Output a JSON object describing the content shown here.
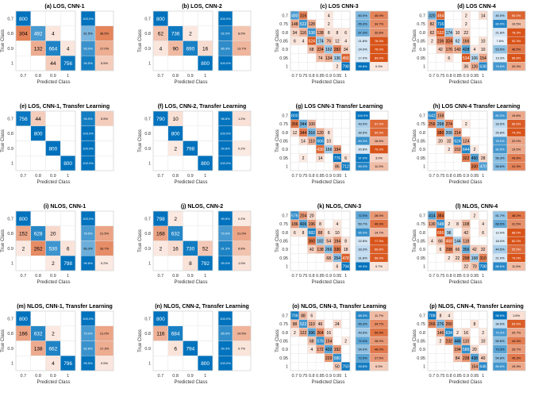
{
  "chart_data": [
    {
      "type": "heatmap",
      "title": "(a) LOS, CNN-1",
      "classes": [
        "0.7",
        "0.8",
        "0.9",
        "1"
      ],
      "matrix": [
        [
          800,
          0,
          0,
          0
        ],
        [
          304,
          492,
          4,
          0
        ],
        [
          0,
          132,
          664,
          4
        ],
        [
          0,
          0,
          44,
          756
        ]
      ],
      "row_summary": [
        [
          "100.0%",
          ""
        ],
        [
          "61.5%",
          "38.5%"
        ],
        [
          "83.0%",
          "17.0%"
        ],
        [
          "94.5%",
          "5.5%"
        ]
      ],
      "xlabel": "Predicted Class",
      "ylabel": "True Class"
    },
    {
      "type": "heatmap",
      "title": "(b) LOS, CNN-2",
      "classes": [
        "0.7",
        "0.8",
        "0.9",
        "1"
      ],
      "matrix": [
        [
          800,
          0,
          0,
          0
        ],
        [
          62,
          736,
          2,
          0
        ],
        [
          4,
          90,
          690,
          16
        ],
        [
          0,
          0,
          0,
          800
        ]
      ],
      "row_summary": [
        [
          "100.0%",
          ""
        ],
        [
          "92.0%",
          "8.0%"
        ],
        [
          "86.3%",
          "13.7%"
        ],
        [
          "100.0%",
          ""
        ]
      ],
      "xlabel": "Predicted Class",
      "ylabel": "True Class"
    },
    {
      "type": "heatmap",
      "title": "(c) LOS CNN-3",
      "classes": [
        "0.7",
        "0.75",
        "0.8",
        "0.85",
        "0.9",
        "0.95",
        "1"
      ],
      "matrix": [
        [
          480,
          316,
          0,
          0,
          4,
          0,
          0
        ],
        [
          148,
          522,
          128,
          0,
          2,
          0,
          0
        ],
        [
          34,
          116,
          538,
          138,
          8,
          8,
          6
        ],
        [
          6,
          4,
          524,
          174,
          76,
          12,
          4
        ],
        [
          0,
          0,
          68,
          224,
          192,
          282,
          34
        ],
        [
          0,
          0,
          0,
          74,
          134,
          136,
          456
        ],
        [
          0,
          0,
          0,
          0,
          0,
          2,
          798
        ]
      ],
      "row_summary": [
        [
          "60.0%",
          "40.0%"
        ],
        [
          "65.3%",
          "34.7%"
        ],
        [
          "67.3%",
          "32.8%"
        ],
        [
          "21.8%",
          "78.3%"
        ],
        [
          "24.0%",
          "76.0%"
        ],
        [
          "17.0%",
          "83.0%"
        ],
        [
          "99.8%",
          "0.3%"
        ]
      ],
      "xlabel": "Predicted Class",
      "ylabel": "True Class"
    },
    {
      "type": "heatmap",
      "title": "(d) LOS CNN-4",
      "classes": [
        "0.7",
        "0.75",
        "0.8",
        "0.85",
        "0.9",
        "0.95",
        "1"
      ],
      "matrix": [
        [
          320,
          464,
          0,
          0,
          2,
          0,
          14
        ],
        [
          82,
          716,
          0,
          0,
          2,
          0,
          0
        ],
        [
          62,
          532,
          174,
          10,
          22,
          0,
          0
        ],
        [
          2,
          236,
          324,
          62,
          166,
          0,
          10
        ],
        [
          0,
          42,
          176,
          140,
          428,
          4,
          10
        ],
        [
          0,
          0,
          6,
          0,
          534,
          106,
          154
        ],
        [
          0,
          0,
          0,
          0,
          36,
          126,
          638
        ]
      ],
      "row_summary": [
        [
          "40.0%",
          "60.0%"
        ],
        [
          "89.5%",
          "10.5%"
        ],
        [
          "21.8%",
          "78.3%"
        ],
        [
          "7.8%",
          "92.3%"
        ],
        [
          "53.5%",
          "46.5%"
        ],
        [
          "13.3%",
          "86.8%"
        ],
        [
          "79.8%",
          "20.3%"
        ]
      ],
      "xlabel": "Predicted Class",
      "ylabel": "True Class"
    },
    {
      "type": "heatmap",
      "title": "(e) LOS, CNN-1, Transfer Learning",
      "classes": [
        "0.7",
        "0.8",
        "0.9",
        "1"
      ],
      "matrix": [
        [
          756,
          44,
          0,
          0
        ],
        [
          0,
          800,
          0,
          0
        ],
        [
          0,
          0,
          800,
          0
        ],
        [
          0,
          0,
          0,
          800
        ]
      ],
      "row_summary": [
        [
          "94.5%",
          "5.5%"
        ],
        [
          "100.0%",
          ""
        ],
        [
          "100.0%",
          ""
        ],
        [
          "100.0%",
          ""
        ]
      ],
      "xlabel": "Predicted Class",
      "ylabel": "True Class"
    },
    {
      "type": "heatmap",
      "title": "(f) LOS, CNN-2, Transfer Learning",
      "classes": [
        "0.7",
        "0.8",
        "0.9",
        "1"
      ],
      "matrix": [
        [
          790,
          10,
          0,
          0
        ],
        [
          0,
          800,
          0,
          0
        ],
        [
          0,
          2,
          798,
          0
        ],
        [
          0,
          0,
          0,
          800
        ]
      ],
      "row_summary": [
        [
          "98.8%",
          "1.2%"
        ],
        [
          "100.0%",
          ""
        ],
        [
          "99.8%",
          "0.2%"
        ],
        [
          "100.0%",
          ""
        ]
      ],
      "xlabel": "Predicted Class",
      "ylabel": "True Class"
    },
    {
      "type": "heatmap",
      "title": "(g) LOS CNN-3 Transfer Learning",
      "classes": [
        "0.7",
        "0.75",
        "0.8",
        "0.85",
        "0.9",
        "0.95",
        "1"
      ],
      "matrix": [
        [
          800,
          0,
          0,
          0,
          0,
          0,
          0
        ],
        [
          356,
          344,
          100,
          0,
          0,
          0,
          0
        ],
        [
          12,
          344,
          316,
          120,
          8,
          0,
          0
        ],
        [
          0,
          14,
          110,
          666,
          10,
          0,
          0
        ],
        [
          0,
          0,
          0,
          430,
          166,
          194,
          0
        ],
        [
          0,
          2,
          0,
          14,
          0,
          776,
          6
        ],
        [
          0,
          0,
          0,
          0,
          0,
          86,
          712
        ]
      ],
      "row_summary": [
        [
          "100.0%",
          ""
        ],
        [
          "43.0%",
          "57.0%"
        ],
        [
          "39.5%",
          "60.5%"
        ],
        [
          "83.3%",
          "16.8%"
        ],
        [
          "20.8%",
          "79.3%"
        ],
        [
          "97.0%",
          "3.0%"
        ],
        [
          "89.0%",
          "11.0%"
        ]
      ],
      "xlabel": "Predicted Class",
      "ylabel": "True Class"
    },
    {
      "type": "heatmap",
      "title": "(h) LOS CNN-4 Transfer Learning",
      "classes": [
        "0.7",
        "0.75",
        "0.8",
        "0.85",
        "0.9",
        "0.95",
        "1"
      ],
      "matrix": [
        [
          642,
          158,
          0,
          0,
          0,
          0,
          0
        ],
        [
          256,
          268,
          274,
          0,
          2,
          0,
          0
        ],
        [
          0,
          380,
          206,
          214,
          0,
          0,
          0
        ],
        [
          0,
          20,
          32,
          624,
          124,
          0,
          0
        ],
        [
          0,
          0,
          2,
          152,
          644,
          2,
          0
        ],
        [
          0,
          0,
          0,
          0,
          322,
          450,
          28
        ],
        [
          0,
          0,
          0,
          0,
          0,
          330,
          470
        ]
      ],
      "row_summary": [
        [
          "80.3%",
          "19.8%"
        ],
        [
          "33.5%",
          "66.5%"
        ],
        [
          "25.8%",
          "74.3%"
        ],
        [
          "78.0%",
          "22.0%"
        ],
        [
          "80.5%",
          "19.5%"
        ],
        [
          "56.3%",
          "43.8%"
        ],
        [
          "58.8%",
          "41.3%"
        ]
      ],
      "xlabel": "Predicted Class",
      "ylabel": "True Class"
    },
    {
      "type": "heatmap",
      "title": "(i) NLOS, CNN-1",
      "classes": [
        "0.7",
        "0.8",
        "0.9",
        "1"
      ],
      "matrix": [
        [
          800,
          0,
          0,
          0
        ],
        [
          152,
          628,
          20,
          0
        ],
        [
          2,
          262,
          530,
          6
        ],
        [
          0,
          0,
          2,
          798
        ]
      ],
      "row_summary": [
        [
          "100.0%",
          ""
        ],
        [
          "78.5%",
          "21.5%"
        ],
        [
          "66.3%",
          "33.7%"
        ],
        [
          "99.8%",
          "0.2%"
        ]
      ],
      "xlabel": "Predicted Class",
      "ylabel": "True Class"
    },
    {
      "type": "heatmap",
      "title": "(j) NLOS, CNN-2",
      "classes": [
        "0.7",
        "0.8",
        "0.9",
        "1"
      ],
      "matrix": [
        [
          798,
          2,
          0,
          0
        ],
        [
          168,
          632,
          0,
          0
        ],
        [
          2,
          16,
          730,
          52
        ],
        [
          0,
          0,
          8,
          792
        ]
      ],
      "row_summary": [
        [
          "99.8%",
          "0.2%"
        ],
        [
          "79.0%",
          "21.0%"
        ],
        [
          "91.3%",
          "8.8%"
        ],
        [
          "99.0%",
          "1.0%"
        ]
      ],
      "xlabel": "Predicted Class",
      "ylabel": "True Class"
    },
    {
      "type": "heatmap",
      "title": "(k) NLOS, CNN-3",
      "classes": [
        "0.7",
        "0.75",
        "0.8",
        "0.85",
        "0.9",
        "0.95",
        "1"
      ],
      "matrix": [
        [
          576,
          204,
          20,
          0,
          0,
          0,
          0
        ],
        [
          186,
          406,
          196,
          8,
          0,
          4,
          0
        ],
        [
          6,
          8,
          682,
          88,
          6,
          10,
          0
        ],
        [
          0,
          0,
          360,
          182,
          54,
          194,
          8
        ],
        [
          0,
          0,
          42,
          138,
          266,
          336,
          18
        ],
        [
          0,
          0,
          0,
          0,
          68,
          254,
          478
        ],
        [
          0,
          0,
          0,
          0,
          0,
          6,
          794
        ]
      ],
      "row_summary": [
        [
          "72.0%",
          "28.0%"
        ],
        [
          "50.7%",
          "49.3%"
        ],
        [
          "85.3%",
          "14.7%"
        ],
        [
          "22.8%",
          "77.3%"
        ],
        [
          "33.3%",
          "66.8%"
        ],
        [
          "31.8%",
          "68.3%"
        ],
        [
          "99.3%",
          "0.7%"
        ]
      ],
      "xlabel": "Predicted Class",
      "ylabel": "True Class"
    },
    {
      "type": "heatmap",
      "title": "(l) NLOS, CNN-4",
      "classes": [
        "0.7",
        "0.75",
        "0.8",
        "0.85",
        "0.9",
        "0.95",
        "1"
      ],
      "matrix": [
        [
          414,
          384,
          0,
          0,
          0,
          2,
          0
        ],
        [
          130,
          548,
          2,
          8,
          108,
          0,
          4
        ],
        [
          0,
          656,
          96,
          0,
          42,
          0,
          6
        ],
        [
          4,
          66,
          468,
          144,
          118,
          0,
          0
        ],
        [
          0,
          6,
          298,
          66,
          356,
          42,
          32
        ],
        [
          0,
          0,
          2,
          22,
          298,
          168,
          310
        ],
        [
          0,
          0,
          0,
          0,
          22,
          70,
          708
        ]
      ],
      "row_summary": [
        [
          "51.7%",
          "48.2%"
        ],
        [
          "68.5%",
          "31.5%"
        ],
        [
          "12.0%",
          "88.0%"
        ],
        [
          "18.0%",
          "82.0%"
        ],
        [
          "44.5%",
          "55.5%"
        ],
        [
          "21.0%",
          "79.0%"
        ],
        [
          "88.5%",
          "11.5%"
        ]
      ],
      "xlabel": "Predicted Class",
      "ylabel": "True Class"
    },
    {
      "type": "heatmap",
      "title": "(m) NLOS, CNN-1, Transfer Learning",
      "classes": [
        "0.7",
        "0.8",
        "0.9",
        "1"
      ],
      "matrix": [
        [
          800,
          0,
          0,
          0
        ],
        [
          166,
          632,
          2,
          0
        ],
        [
          0,
          138,
          662,
          0
        ],
        [
          0,
          0,
          4,
          796
        ]
      ],
      "row_summary": [
        [
          "100.0%",
          ""
        ],
        [
          "79.0%",
          "21.0%"
        ],
        [
          "82.8%",
          "17.3%"
        ],
        [
          "99.5%",
          "0.5%"
        ]
      ],
      "xlabel": "Predicted Class",
      "ylabel": "True Class"
    },
    {
      "type": "heatmap",
      "title": "(n) NLOS, CNN-2, Transfer Learning",
      "classes": [
        "0.7",
        "0.8",
        "0.9",
        "1"
      ],
      "matrix": [
        [
          800,
          0,
          0,
          0
        ],
        [
          116,
          684,
          0,
          0
        ],
        [
          0,
          6,
          794,
          0
        ],
        [
          0,
          0,
          0,
          800
        ]
      ],
      "row_summary": [
        [
          "100.0%",
          ""
        ],
        [
          "85.5%",
          "14.5%"
        ],
        [
          "99.3%",
          "0.7%"
        ],
        [
          "100.0%",
          ""
        ]
      ],
      "xlabel": "Predicted Class",
      "ylabel": "True Class"
    },
    {
      "type": "heatmap",
      "title": "(o) NLOS, CNN-3, Transfer Learning",
      "classes": [
        "0.7",
        "0.75",
        "0.8",
        "0.85",
        "0.9",
        "0.95",
        "1"
      ],
      "matrix": [
        [
          706,
          88,
          6,
          0,
          0,
          0,
          0
        ],
        [
          98,
          522,
          110,
          46,
          0,
          24,
          0
        ],
        [
          2,
          122,
          396,
          264,
          16,
          0,
          0
        ],
        [
          0,
          0,
          68,
          576,
          154,
          0,
          2
        ],
        [
          0,
          0,
          4,
          172,
          432,
          192,
          0
        ],
        [
          0,
          0,
          0,
          0,
          220,
          580,
          0
        ],
        [
          0,
          0,
          0,
          0,
          0,
          50,
          750
        ]
      ],
      "row_summary": [
        [
          "88.3%",
          "11.7%"
        ],
        [
          "65.3%",
          "34.7%"
        ],
        [
          "49.5%",
          "50.5%"
        ],
        [
          "72.0%",
          "28.0%"
        ],
        [
          "54.0%",
          "46.0%"
        ],
        [
          "72.5%",
          "27.5%"
        ],
        [
          "93.8%",
          "6.3%"
        ]
      ],
      "xlabel": "Predicted Class",
      "ylabel": "True Class"
    },
    {
      "type": "heatmap",
      "title": "(p) NLOS, CNN-4, Transfer Learning",
      "classes": [
        "0.7",
        "0.75",
        "0.8",
        "0.85",
        "0.9",
        "0.95",
        "1"
      ],
      "matrix": [
        [
          788,
          8,
          4,
          0,
          0,
          0,
          0
        ],
        [
          266,
          276,
          250,
          0,
          0,
          8,
          0
        ],
        [
          0,
          146,
          634,
          2,
          16,
          0,
          2
        ],
        [
          0,
          2,
          232,
          446,
          110,
          0,
          10
        ],
        [
          0,
          0,
          0,
          194,
          586,
          20,
          0
        ],
        [
          0,
          0,
          0,
          84,
          238,
          438,
          40
        ],
        [
          0,
          0,
          0,
          0,
          0,
          154,
          646
        ]
      ],
      "row_summary": [
        [
          "98.5%",
          "1.5%"
        ],
        [
          "34.5%",
          "65.5%"
        ],
        [
          "79.3%",
          "20.7%"
        ],
        [
          "55.8%",
          "44.3%"
        ],
        [
          "73.3%",
          "26.7%"
        ],
        [
          "54.8%",
          "45.3%"
        ],
        [
          "80.8%",
          "19.3%"
        ]
      ],
      "xlabel": "Predicted Class",
      "ylabel": "True Class"
    }
  ]
}
